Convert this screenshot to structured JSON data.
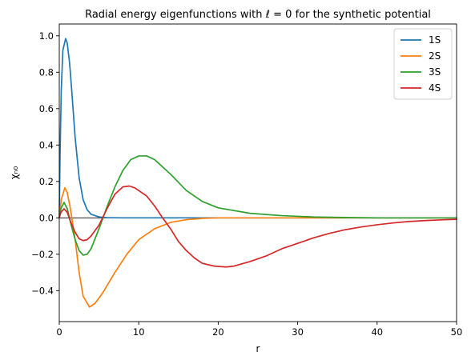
{
  "chart_data": {
    "type": "line",
    "title": "Radial energy eigenfunctions with ℓ = 0 for the synthetic potential",
    "xlabel": "r",
    "ylabel": "χₙ₀",
    "xlim": [
      0,
      50
    ],
    "ylim": [
      -0.57,
      1.065
    ],
    "xticks": [
      0,
      10,
      20,
      30,
      40,
      50
    ],
    "yticks": [
      -0.4,
      -0.2,
      0.0,
      0.2,
      0.4,
      0.6,
      0.8,
      1.0
    ],
    "xtick_labels": [
      "0",
      "10",
      "20",
      "30",
      "40",
      "50"
    ],
    "ytick_labels": [
      "−0.4",
      "−0.2",
      "0.0",
      "0.2",
      "0.4",
      "0.6",
      "0.8",
      "1.0"
    ],
    "grid": false,
    "legend_position": "top-right",
    "horizontal_line_y": 0,
    "series": [
      {
        "name": "1S",
        "color": "#1f77b4",
        "points": [
          [
            0,
            0.0
          ],
          [
            0.1,
            0.35
          ],
          [
            0.25,
            0.7
          ],
          [
            0.45,
            0.92
          ],
          [
            0.8,
            0.985
          ],
          [
            1.0,
            0.96
          ],
          [
            1.3,
            0.85
          ],
          [
            1.6,
            0.68
          ],
          [
            2.0,
            0.44
          ],
          [
            2.5,
            0.22
          ],
          [
            3.0,
            0.1
          ],
          [
            3.5,
            0.045
          ],
          [
            4.0,
            0.02
          ],
          [
            5.0,
            0.005
          ],
          [
            6.0,
            0.001
          ],
          [
            8.0,
            0.0
          ],
          [
            50.0,
            0.0
          ]
        ]
      },
      {
        "name": "2S",
        "color": "#ff7f0e",
        "points": [
          [
            0,
            0.0
          ],
          [
            0.25,
            0.1
          ],
          [
            0.7,
            0.165
          ],
          [
            1.0,
            0.14
          ],
          [
            1.4,
            0.05
          ],
          [
            2.0,
            -0.12
          ],
          [
            2.5,
            -0.3
          ],
          [
            3.0,
            -0.43
          ],
          [
            3.8,
            -0.49
          ],
          [
            4.5,
            -0.47
          ],
          [
            5.5,
            -0.41
          ],
          [
            7.0,
            -0.3
          ],
          [
            8.5,
            -0.2
          ],
          [
            10.0,
            -0.12
          ],
          [
            12.0,
            -0.06
          ],
          [
            14.0,
            -0.025
          ],
          [
            16.0,
            -0.01
          ],
          [
            18.0,
            -0.003
          ],
          [
            20.0,
            0.0
          ],
          [
            50.0,
            0.0
          ]
        ]
      },
      {
        "name": "3S",
        "color": "#2ca02c",
        "points": [
          [
            0,
            0.0
          ],
          [
            0.2,
            0.05
          ],
          [
            0.6,
            0.085
          ],
          [
            1.0,
            0.05
          ],
          [
            1.5,
            -0.04
          ],
          [
            2.0,
            -0.12
          ],
          [
            2.5,
            -0.18
          ],
          [
            3.0,
            -0.205
          ],
          [
            3.5,
            -0.2
          ],
          [
            4.0,
            -0.17
          ],
          [
            5.0,
            -0.06
          ],
          [
            6.0,
            0.06
          ],
          [
            7.0,
            0.17
          ],
          [
            8.0,
            0.26
          ],
          [
            9.0,
            0.32
          ],
          [
            10.0,
            0.34
          ],
          [
            11.0,
            0.34
          ],
          [
            12.0,
            0.32
          ],
          [
            14.0,
            0.24
          ],
          [
            16.0,
            0.15
          ],
          [
            18.0,
            0.09
          ],
          [
            20.0,
            0.055
          ],
          [
            24.0,
            0.025
          ],
          [
            28.0,
            0.012
          ],
          [
            32.0,
            0.005
          ],
          [
            36.0,
            0.002
          ],
          [
            40.0,
            0.0
          ],
          [
            50.0,
            0.0
          ]
        ]
      },
      {
        "name": "4S",
        "color": "#d62728",
        "points": [
          [
            0,
            0.0
          ],
          [
            0.2,
            0.03
          ],
          [
            0.6,
            0.05
          ],
          [
            1.0,
            0.03
          ],
          [
            1.5,
            -0.03
          ],
          [
            2.0,
            -0.08
          ],
          [
            2.5,
            -0.115
          ],
          [
            3.0,
            -0.125
          ],
          [
            3.5,
            -0.12
          ],
          [
            4.0,
            -0.1
          ],
          [
            5.0,
            -0.04
          ],
          [
            6.0,
            0.05
          ],
          [
            7.0,
            0.13
          ],
          [
            8.0,
            0.17
          ],
          [
            8.8,
            0.175
          ],
          [
            9.5,
            0.165
          ],
          [
            11.0,
            0.12
          ],
          [
            12.0,
            0.065
          ],
          [
            13.0,
            0.0
          ],
          [
            14.0,
            -0.06
          ],
          [
            15.0,
            -0.13
          ],
          [
            16.0,
            -0.18
          ],
          [
            17.0,
            -0.22
          ],
          [
            18.0,
            -0.25
          ],
          [
            19.5,
            -0.265
          ],
          [
            21.0,
            -0.27
          ],
          [
            22.0,
            -0.265
          ],
          [
            24.0,
            -0.24
          ],
          [
            26.0,
            -0.21
          ],
          [
            28.0,
            -0.17
          ],
          [
            30.0,
            -0.14
          ],
          [
            32.0,
            -0.11
          ],
          [
            34.0,
            -0.085
          ],
          [
            36.0,
            -0.065
          ],
          [
            38.0,
            -0.05
          ],
          [
            40.0,
            -0.038
          ],
          [
            42.0,
            -0.028
          ],
          [
            44.0,
            -0.02
          ],
          [
            46.0,
            -0.015
          ],
          [
            48.0,
            -0.011
          ],
          [
            50.0,
            -0.008
          ]
        ]
      }
    ]
  }
}
